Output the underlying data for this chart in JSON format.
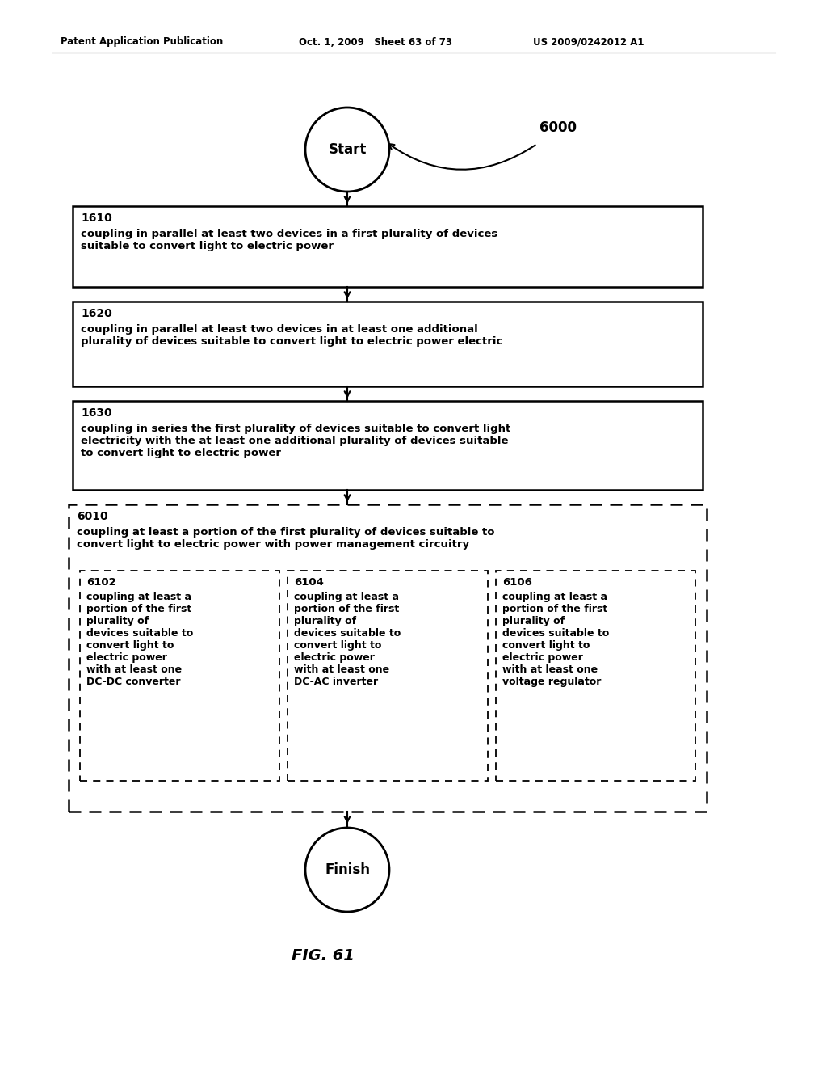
{
  "bg_color": "#ffffff",
  "header_left": "Patent Application Publication",
  "header_mid": "Oct. 1, 2009   Sheet 63 of 73",
  "header_right": "US 2009/0242012 A1",
  "fig_label": "FIG. 61",
  "label_6000": "6000",
  "start_label": "Start",
  "finish_label": "Finish",
  "box1_label": "1610",
  "box1_text": "coupling in parallel at least two devices in a first plurality of devices\nsuitable to convert light to electric power",
  "box2_label": "1620",
  "box2_text": "coupling in parallel at least two devices in at least one additional\nplurality of devices suitable to convert light to electric power electric",
  "box3_label": "1630",
  "box3_text": "coupling in series the first plurality of devices suitable to convert light\nelectricity with the at least one additional plurality of devices suitable\nto convert light to electric power",
  "outer_dash_label": "6010",
  "outer_dash_text": "coupling at least a portion of the first plurality of devices suitable to\nconvert light to electric power with power management circuitry",
  "sub1_label": "6102",
  "sub1_text": "coupling at least a\nportion of the first\nplurality of\ndevices suitable to\nconvert light to\nelectric power\nwith at least one\nDC-DC converter",
  "sub2_label": "6104",
  "sub2_text": "coupling at least a\nportion of the first\nplurality of\ndevices suitable to\nconvert light to\nelectric power\nwith at least one\nDC-AC inverter",
  "sub3_label": "6106",
  "sub3_text": "coupling at least a\nportion of the first\nplurality of\ndevices suitable to\nconvert light to\nelectric power\nwith at least one\nvoltage regulator"
}
